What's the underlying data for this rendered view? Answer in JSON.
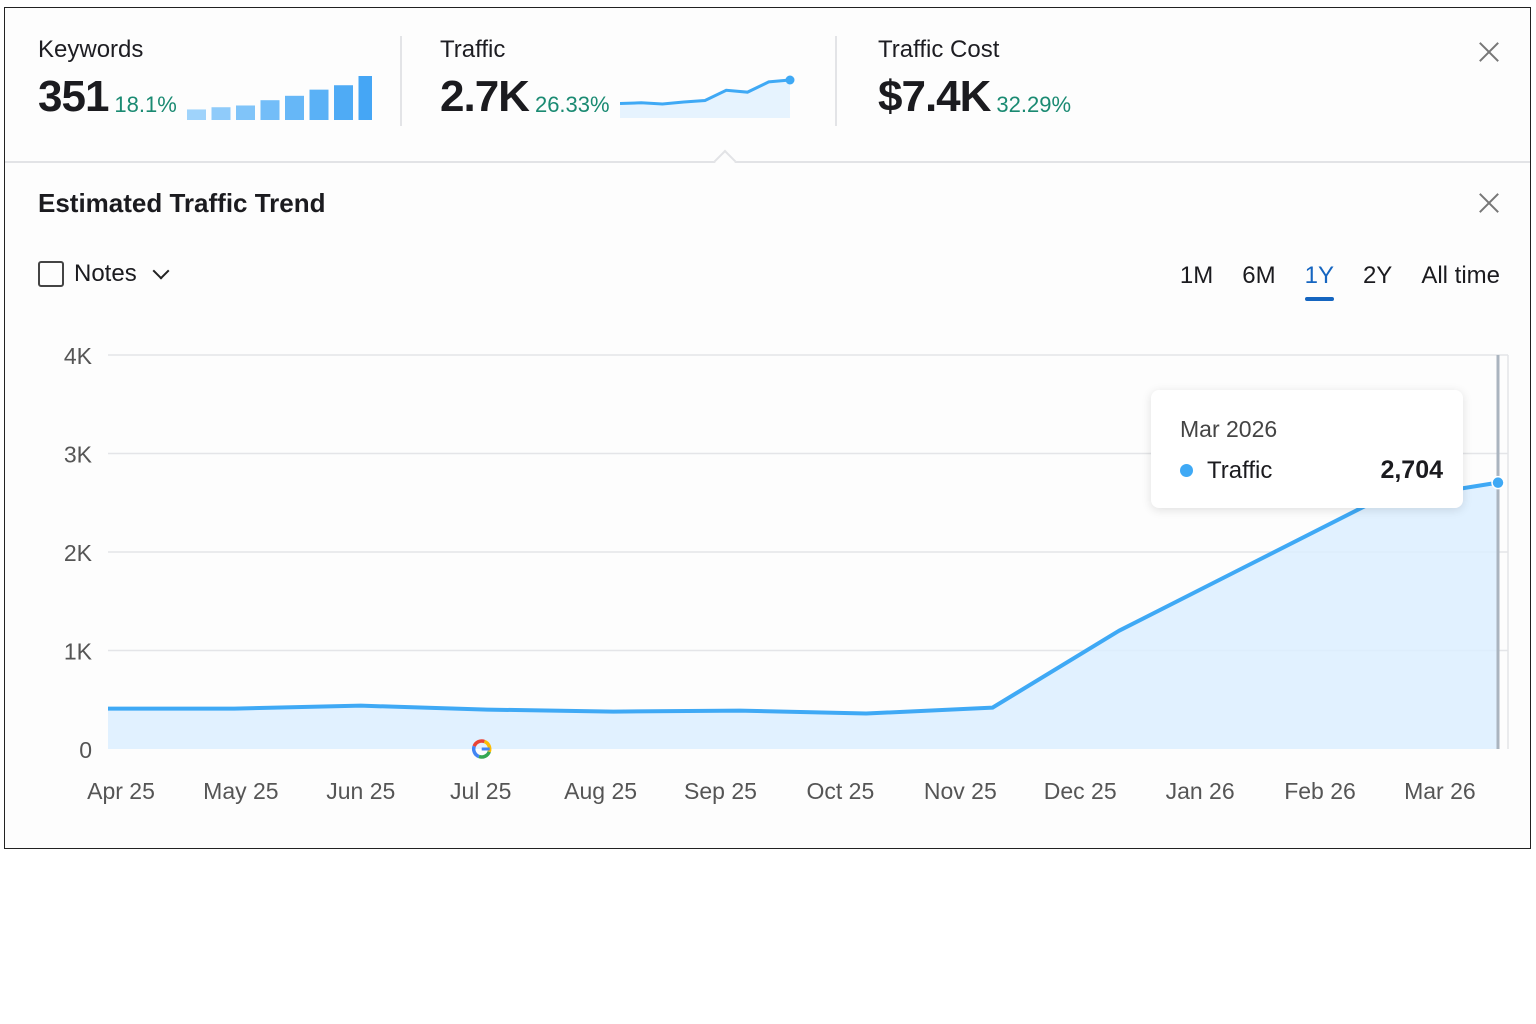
{
  "metrics": [
    {
      "label": "Keywords",
      "value": "351",
      "change": "18.1%",
      "sparkline_type": "bar",
      "sparkline": [
        0.24,
        0.29,
        0.33,
        0.45,
        0.55,
        0.69,
        0.79,
        1.0
      ]
    },
    {
      "label": "Traffic",
      "value": "2.7K",
      "change": "26.33%",
      "sparkline_type": "area",
      "sparkline": [
        0.38,
        0.4,
        0.37,
        0.42,
        0.46,
        0.73,
        0.68,
        0.95,
        1.0
      ]
    },
    {
      "label": "Traffic Cost",
      "value": "$7.4K",
      "change": "32.29%"
    }
  ],
  "panel": {
    "title": "Estimated Traffic Trend",
    "notes_label": "Notes",
    "notes_checked": false,
    "ranges": [
      "1M",
      "6M",
      "1Y",
      "2Y",
      "All time"
    ],
    "active_range": "1Y"
  },
  "tooltip": {
    "date": "Mar 2026",
    "series": "Traffic",
    "value": "2,704"
  },
  "colors": {
    "accent": "#3fa9f5",
    "fill": "#dcefff",
    "positive": "#1a8a72",
    "active_tab": "#1565c0"
  },
  "chart_data": {
    "type": "area",
    "title": "Estimated Traffic Trend",
    "categories": [
      "Apr 25",
      "May 25",
      "Jun 25",
      "Jul 25",
      "Aug 25",
      "Sep 25",
      "Oct 25",
      "Nov 25",
      "Dec 25",
      "Jan 26",
      "Feb 26",
      "Mar 26"
    ],
    "series": [
      {
        "name": "Traffic",
        "values": [
          410,
          410,
          440,
          400,
          380,
          390,
          360,
          420,
          1200,
          1850,
          2500,
          2704
        ]
      }
    ],
    "yticks": [
      "0",
      "1K",
      "2K",
      "3K",
      "4K"
    ],
    "ylim": [
      0,
      4000
    ],
    "grid": true,
    "annotation": {
      "category": "Jul 25",
      "icon": "google-icon"
    },
    "highlighted": "Mar 26"
  }
}
